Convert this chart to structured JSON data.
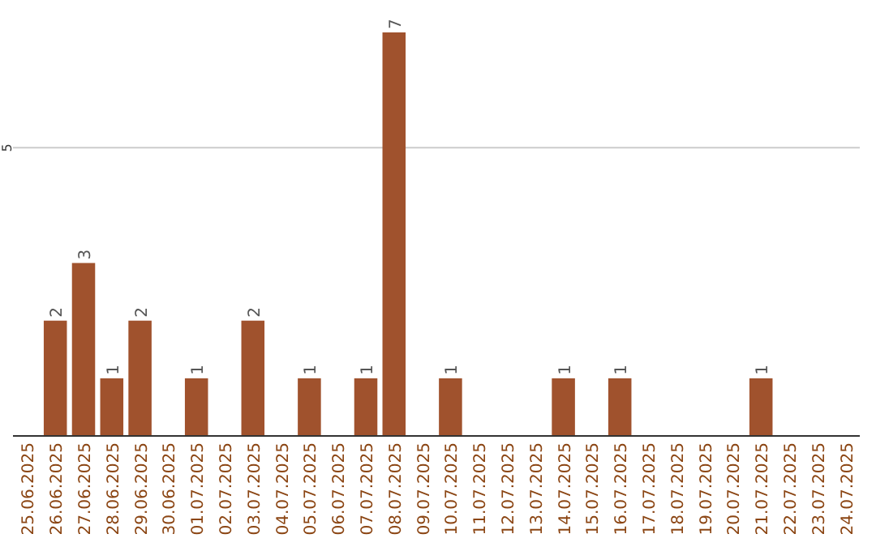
{
  "chart_data": {
    "type": "bar",
    "categories": [
      "25.06.2025",
      "26.06.2025",
      "27.06.2025",
      "28.06.2025",
      "29.06.2025",
      "30.06.2025",
      "01.07.2025",
      "02.07.2025",
      "03.07.2025",
      "04.07.2025",
      "05.07.2025",
      "06.07.2025",
      "07.07.2025",
      "08.07.2025",
      "09.07.2025",
      "10.07.2025",
      "11.07.2025",
      "12.07.2025",
      "13.07.2025",
      "14.07.2025",
      "15.07.2025",
      "16.07.2025",
      "17.07.2025",
      "18.07.2025",
      "19.07.2025",
      "20.07.2025",
      "21.07.2025",
      "22.07.2025",
      "23.07.2025",
      "24.07.2025"
    ],
    "values": [
      0,
      2,
      3,
      1,
      2,
      0,
      1,
      0,
      2,
      0,
      1,
      0,
      1,
      7,
      0,
      1,
      0,
      0,
      0,
      1,
      0,
      1,
      0,
      0,
      0,
      0,
      1,
      0,
      0,
      0
    ],
    "value_labels": [
      null,
      "2",
      "3",
      "1",
      "2",
      null,
      "1",
      null,
      "2",
      null,
      "1",
      null,
      "1",
      "7",
      null,
      "1",
      null,
      null,
      null,
      "1",
      null,
      "1",
      null,
      null,
      null,
      null,
      "1",
      null,
      null,
      null
    ],
    "color": "#a0522d",
    "ylim": [
      0,
      7
    ],
    "yticks": [
      5
    ],
    "grid": "y"
  }
}
